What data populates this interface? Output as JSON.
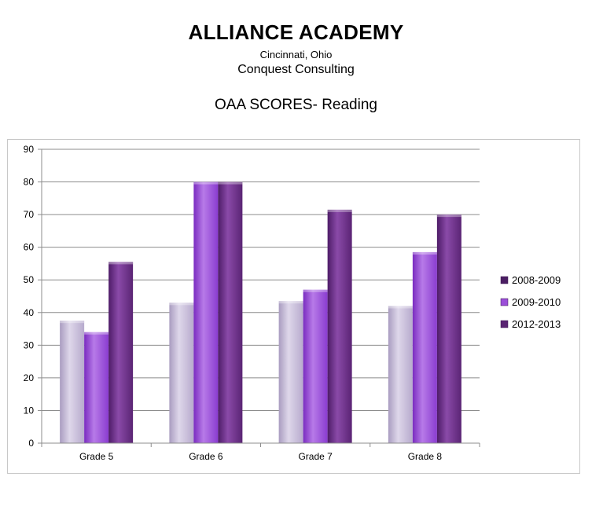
{
  "header": {
    "school": "ALLIANCE ACADEMY",
    "location": "Cincinnati, Ohio",
    "firm": "Conquest Consulting"
  },
  "chart_data": {
    "type": "bar",
    "title": "OAA SCORES- Reading",
    "xlabel": "",
    "ylabel": "",
    "ylim": [
      0,
      90
    ],
    "yticks": [
      0,
      10,
      20,
      30,
      40,
      50,
      60,
      70,
      80,
      90
    ],
    "grid": true,
    "legend": "right",
    "categories": [
      "Grade 5",
      "Grade 6",
      "Grade 7",
      "Grade 8"
    ],
    "series": [
      {
        "name": "2008-2009",
        "values": [
          37.5,
          43,
          43.5,
          42
        ],
        "color": "#c9bfda"
      },
      {
        "name": "2009-2010",
        "values": [
          34,
          80,
          47,
          58.5
        ],
        "color": "#9b4fd8"
      },
      {
        "name": "2012-2013",
        "values": [
          55.5,
          80,
          71.5,
          70
        ],
        "color": "#6a2a8a"
      }
    ],
    "legend_swatch_colors": [
      "#4b1e63",
      "#9b4fd8",
      "#5a2472"
    ]
  }
}
